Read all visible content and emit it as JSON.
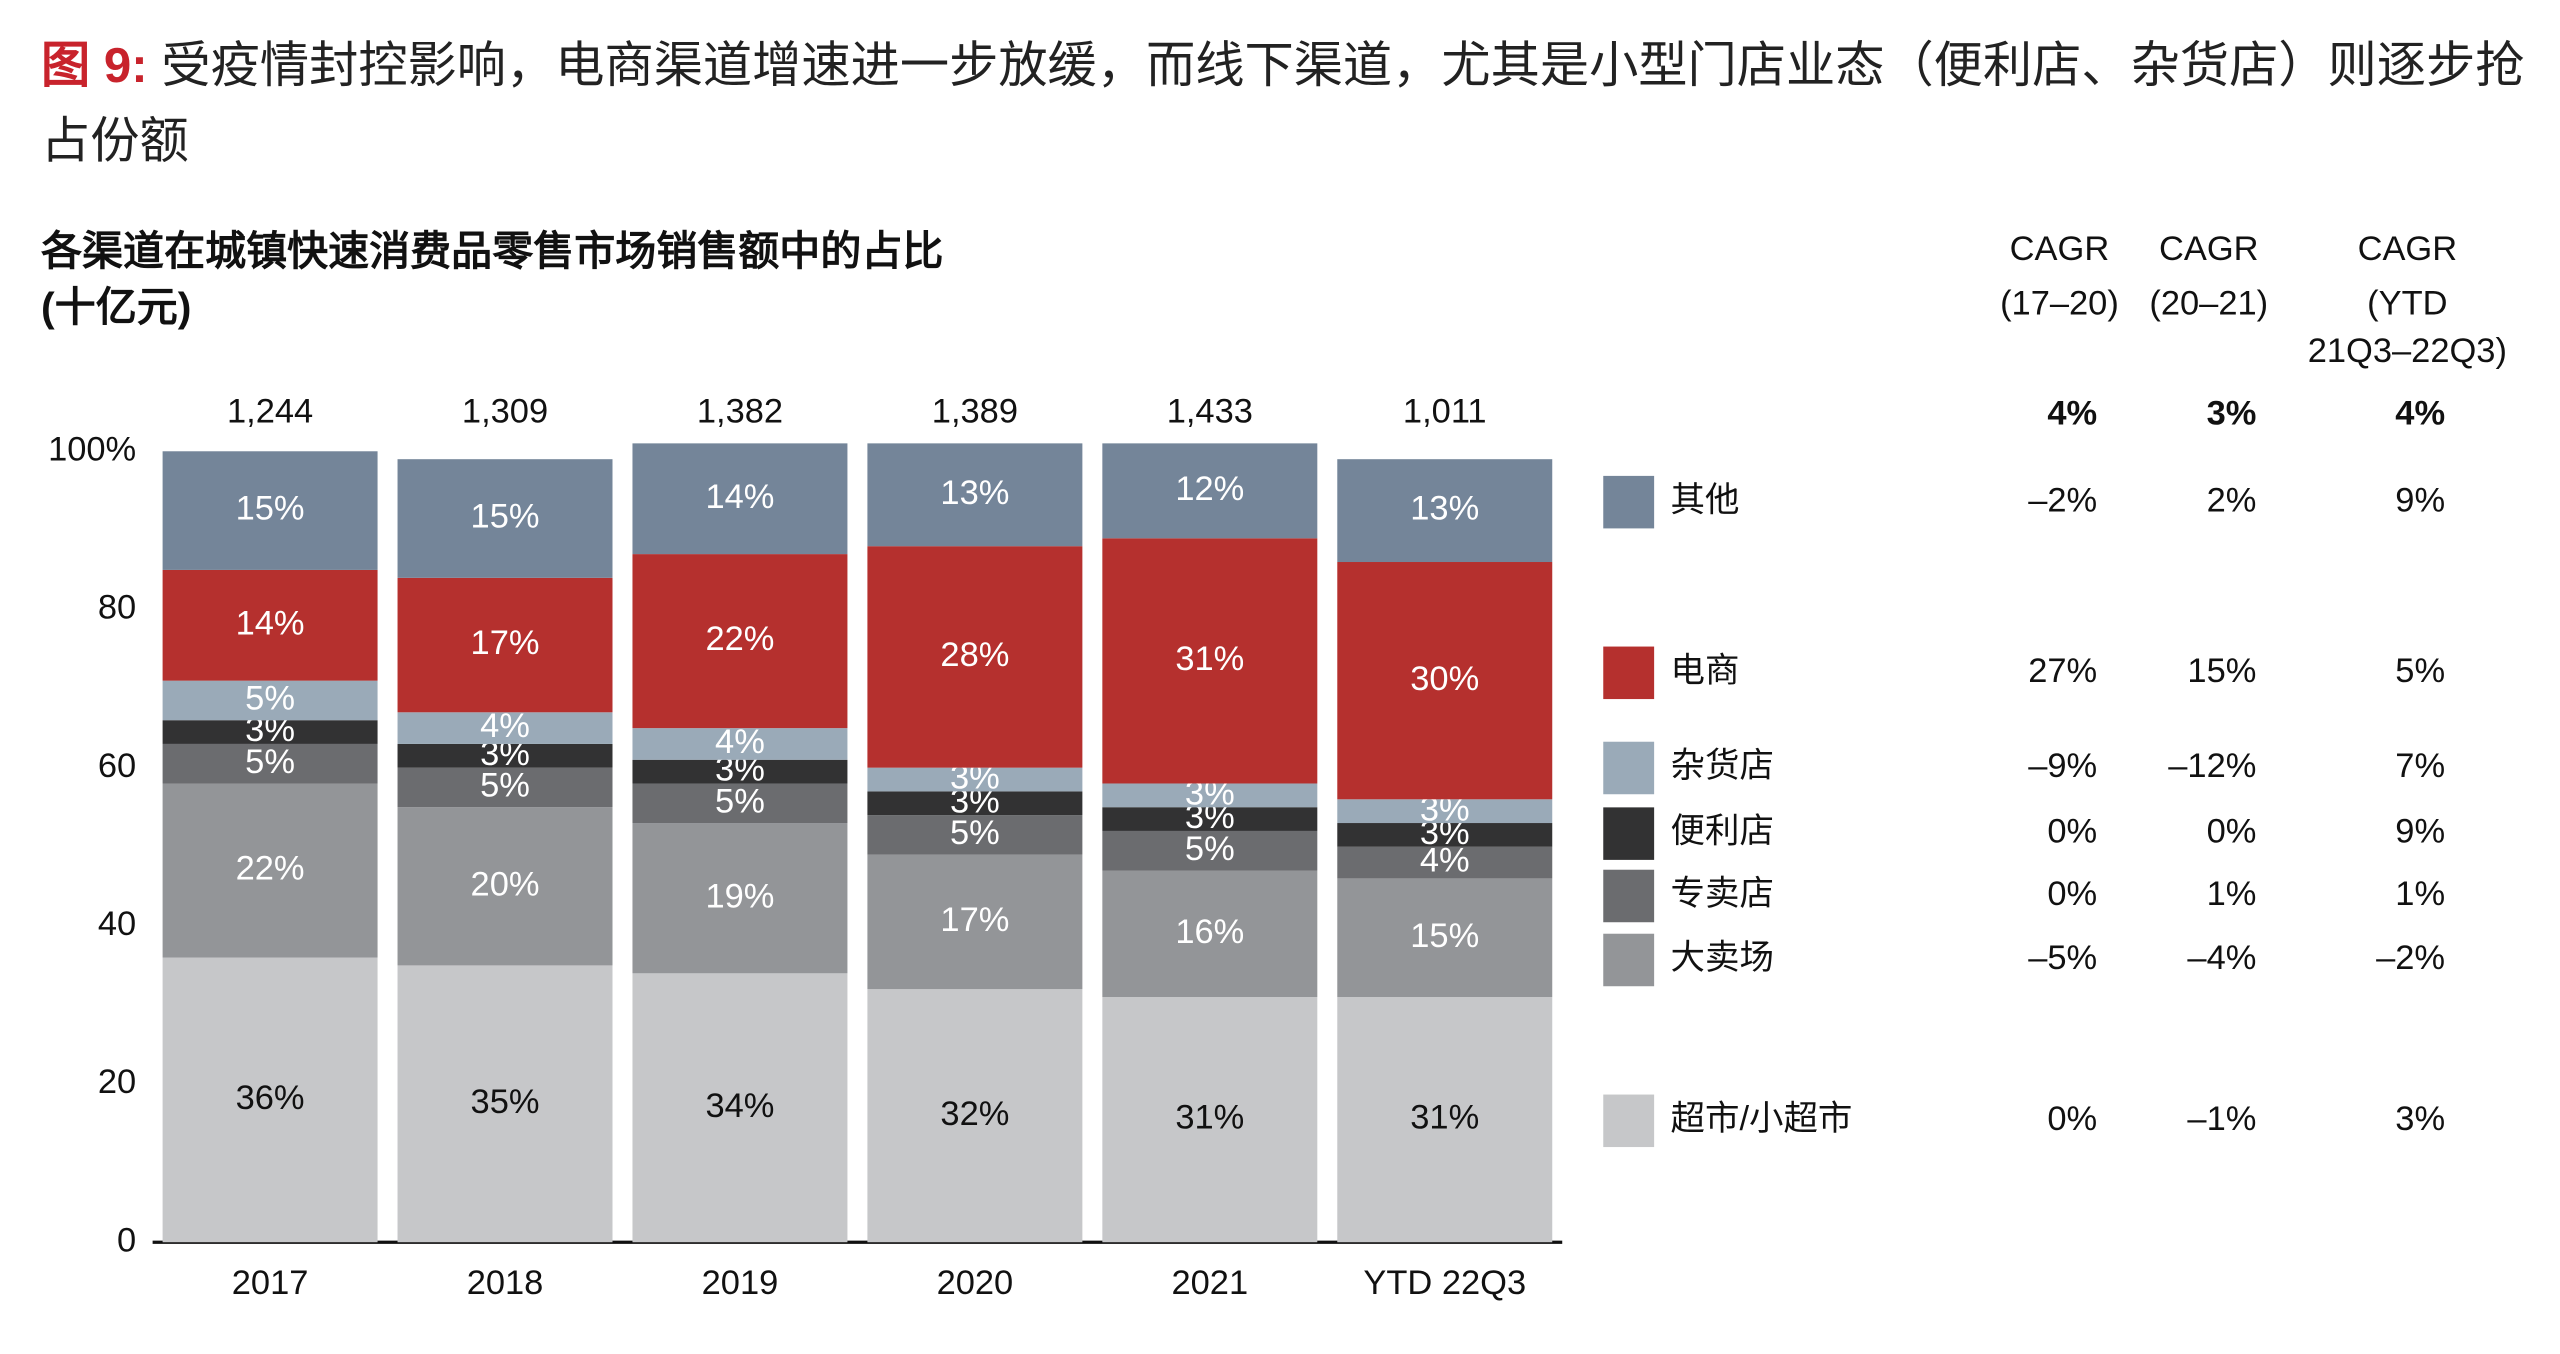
{
  "chart_data": {
    "type": "stacked_bar",
    "figure_label": "图 9:",
    "title": "受疫情封控影响，电商渠道增速进一步放缓，而线下渠道，尤其是小型门店业态（便利店、杂货店）则逐步抢占份额",
    "chart_title": "各渠道在城镇快速消费品零售市场销售额中的占比",
    "unit": "(十亿元)",
    "categories": [
      "2017",
      "2018",
      "2019",
      "2020",
      "2021",
      "YTD 22Q3"
    ],
    "totals": {
      "values": [
        1244,
        1309,
        1382,
        1389,
        1433,
        1011
      ],
      "value_labels": [
        "1,244",
        "1,309",
        "1,382",
        "1,389",
        "1,433",
        "1,011"
      ]
    },
    "ylim": [
      0,
      100
    ],
    "yticks": [
      0,
      20,
      40,
      60,
      80,
      {
        "value": 100,
        "label": "100%"
      }
    ],
    "grid": false,
    "cagr_headers": [
      [
        "CAGR",
        "(17–20)"
      ],
      [
        "CAGR",
        "(20–21)"
      ],
      [
        "CAGR",
        "(YTD",
        "21Q3–22Q3)"
      ]
    ],
    "total_cagr": [
      "4%",
      "3%",
      "4%"
    ],
    "series": [
      {
        "name": "超市/小超市",
        "color": "#c6c7c9",
        "label_color": "#111111",
        "values": [
          36,
          35,
          34,
          32,
          31,
          31
        ],
        "value_labels": [
          "36%",
          "35%",
          "34%",
          "32%",
          "31%",
          "31%"
        ],
        "cagr": [
          "0%",
          "–1%",
          "3%"
        ]
      },
      {
        "name": "大卖场",
        "color": "#939598",
        "label_color": "#ffffff",
        "values": [
          22,
          20,
          19,
          17,
          16,
          15
        ],
        "value_labels": [
          "22%",
          "20%",
          "19%",
          "17%",
          "16%",
          "15%"
        ],
        "cagr": [
          "–5%",
          "–4%",
          "–2%"
        ]
      },
      {
        "name": "专卖店",
        "color": "#6b6c6f",
        "label_color": "#ffffff",
        "values": [
          5,
          5,
          5,
          5,
          5,
          4
        ],
        "value_labels": [
          "5%",
          "5%",
          "5%",
          "5%",
          "5%",
          "4%"
        ],
        "cagr": [
          "0%",
          "1%",
          "1%"
        ]
      },
      {
        "name": "便利店",
        "color": "#323233",
        "label_color": "#ffffff",
        "values": [
          3,
          3,
          3,
          3,
          3,
          3
        ],
        "value_labels": [
          "3%",
          "3%",
          "3%",
          "3%",
          "3%",
          "3%"
        ],
        "cagr": [
          "0%",
          "0%",
          "9%"
        ]
      },
      {
        "name": "杂货店",
        "color": "#9aaab8",
        "label_color": "#ffffff",
        "values": [
          5,
          4,
          4,
          3,
          3,
          3
        ],
        "value_labels": [
          "5%",
          "4%",
          "4%",
          "3%",
          "3%",
          "3%"
        ],
        "cagr": [
          "–9%",
          "–12%",
          "7%"
        ]
      },
      {
        "name": "电商",
        "color": "#b5302e",
        "label_color": "#ffffff",
        "values": [
          14,
          17,
          22,
          28,
          31,
          30
        ],
        "value_labels": [
          "14%",
          "17%",
          "22%",
          "28%",
          "31%",
          "30%"
        ],
        "cagr": [
          "27%",
          "15%",
          "5%"
        ]
      },
      {
        "name": "其他",
        "color": "#748599",
        "label_color": "#ffffff",
        "values": [
          15,
          15,
          14,
          13,
          12,
          13
        ],
        "value_labels": [
          "15%",
          "15%",
          "14%",
          "13%",
          "12%",
          "13%"
        ],
        "cagr": [
          "–2%",
          "2%",
          "9%"
        ]
      }
    ]
  }
}
